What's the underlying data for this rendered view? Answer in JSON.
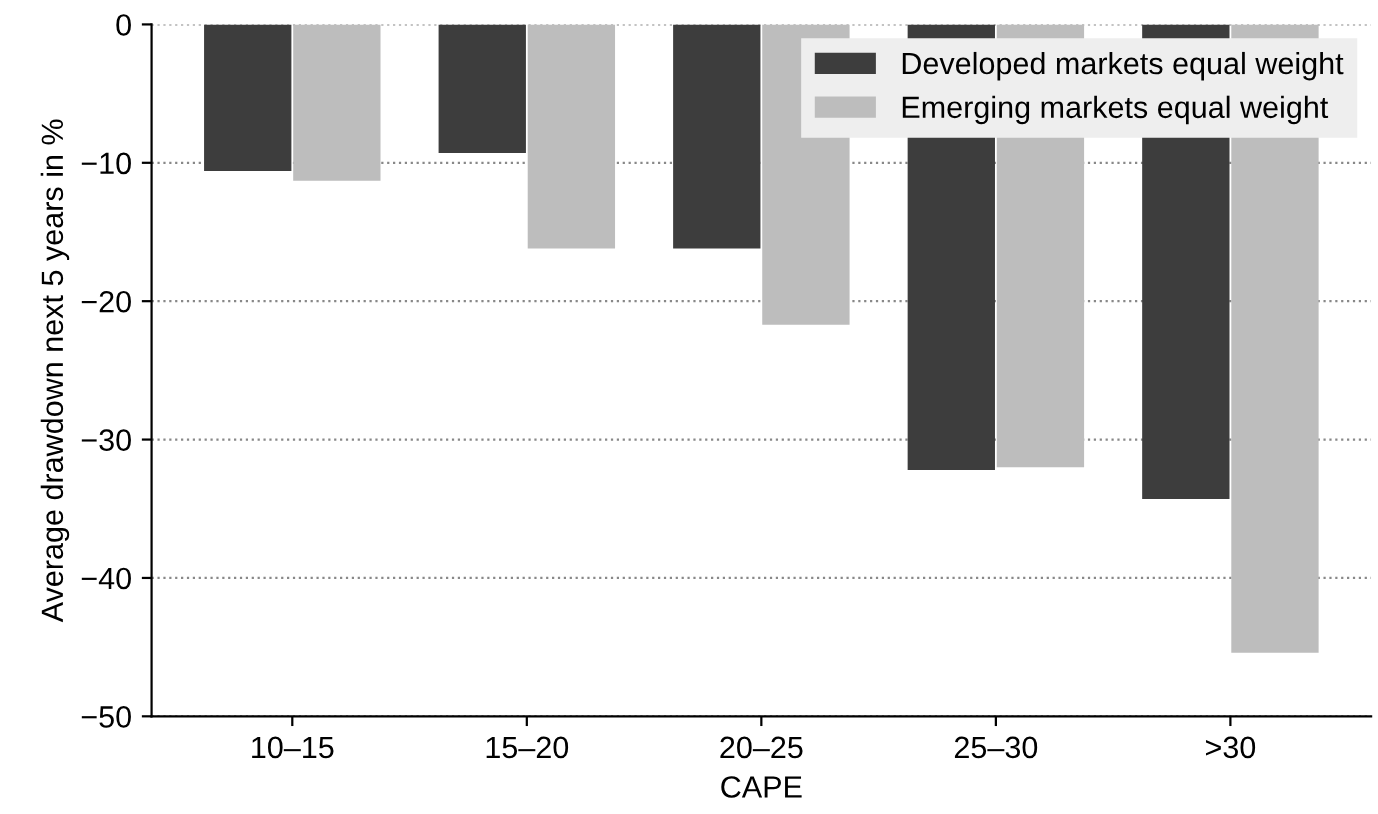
{
  "chart_data": {
    "type": "bar",
    "xlabel": "CAPE",
    "ylabel": "Average drawdown next 5 years in %",
    "categories": [
      "10–15",
      "15–20",
      "20–25",
      "25–30",
      ">30"
    ],
    "series": [
      {
        "name": "Developed markets equal weight",
        "color": "#3d3d3d",
        "values": [
          -10.6,
          -9.3,
          -16.2,
          -32.2,
          -34.3
        ]
      },
      {
        "name": "Emerging markets equal weight",
        "color": "#bdbdbd",
        "values": [
          -11.3,
          -16.2,
          -21.7,
          -32.0,
          -45.4
        ]
      }
    ],
    "ylim": [
      -50,
      0
    ],
    "yticks": [
      {
        "value": -50,
        "label": "−50"
      },
      {
        "value": -40,
        "label": "−40"
      },
      {
        "value": -30,
        "label": "−30"
      },
      {
        "value": -20,
        "label": "−20"
      },
      {
        "value": -10,
        "label": "−10"
      },
      0
    ],
    "grid": "y",
    "legend": "top right"
  }
}
